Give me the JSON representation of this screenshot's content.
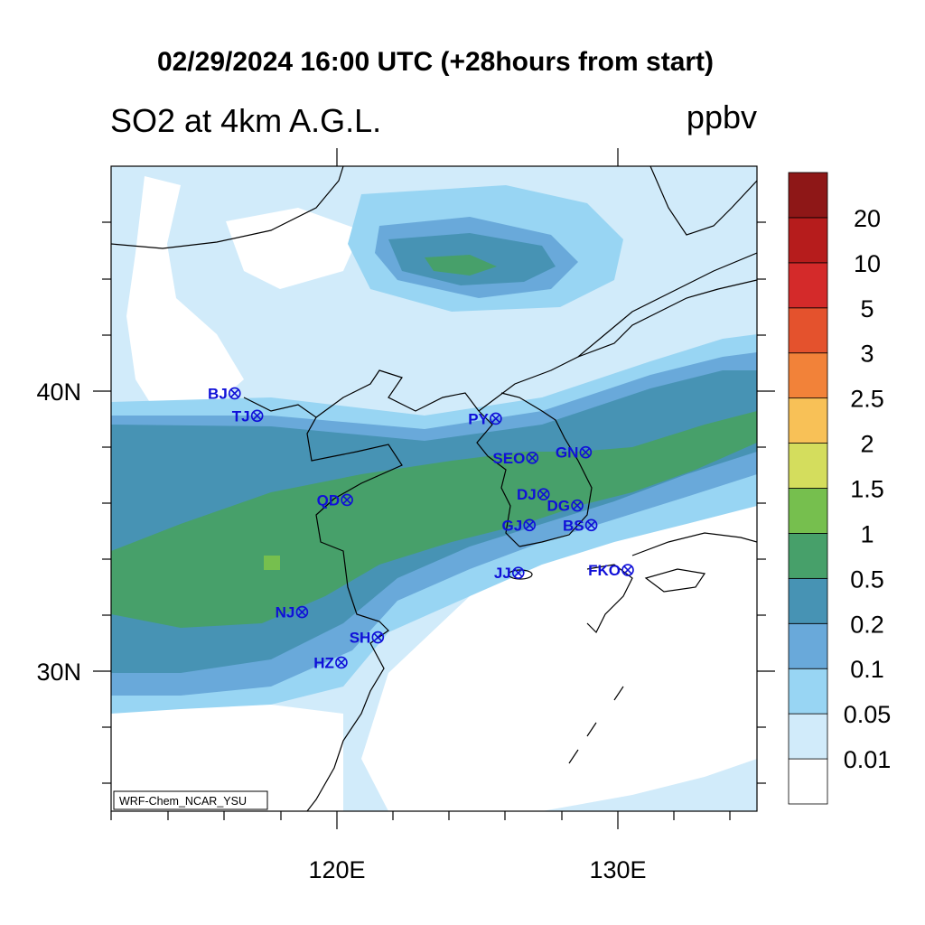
{
  "title": "02/29/2024 16:00 UTC (+28hours from start)",
  "variable": "SO2 at 4km A.G.L.",
  "units": "ppbv",
  "credit": "WRF-Chem_NCAR_YSU",
  "lon_range": [
    112,
    135
  ],
  "lat_range": [
    25,
    48
  ],
  "lon_tick_labels": [
    "120E",
    "130E"
  ],
  "lat_tick_labels": [
    "40N",
    "30N"
  ],
  "colorbar": {
    "levels": [
      "0.01",
      "0.05",
      "0.1",
      "0.2",
      "0.5",
      "1",
      "1.5",
      "2",
      "2.5",
      "3",
      "5",
      "10",
      "20"
    ],
    "colors": [
      "#ffffff",
      "#d1ebfa",
      "#98d5f3",
      "#69a9da",
      "#4793b4",
      "#47a06a",
      "#76bf4e",
      "#d4dd5d",
      "#f8c157",
      "#f28239",
      "#e4522d",
      "#d42a2a",
      "#b61c1c",
      "#8e1717"
    ]
  },
  "stations": [
    {
      "code": "BJ",
      "lon": 116.4,
      "lat": 39.9
    },
    {
      "code": "TJ",
      "lon": 117.2,
      "lat": 39.1
    },
    {
      "code": "PY",
      "lon": 125.7,
      "lat": 39.0
    },
    {
      "code": "SEO",
      "lon": 127.0,
      "lat": 37.6
    },
    {
      "code": "GN",
      "lon": 128.9,
      "lat": 37.8
    },
    {
      "code": "DJ",
      "lon": 127.4,
      "lat": 36.3
    },
    {
      "code": "DG",
      "lon": 128.6,
      "lat": 35.9
    },
    {
      "code": "QD",
      "lon": 120.4,
      "lat": 36.1
    },
    {
      "code": "GJ",
      "lon": 126.9,
      "lat": 35.2
    },
    {
      "code": "BS",
      "lon": 129.1,
      "lat": 35.2
    },
    {
      "code": "JJ",
      "lon": 126.5,
      "lat": 33.5
    },
    {
      "code": "FKO",
      "lon": 130.4,
      "lat": 33.6
    },
    {
      "code": "NJ",
      "lon": 118.8,
      "lat": 32.1
    },
    {
      "code": "SH",
      "lon": 121.5,
      "lat": 31.2
    },
    {
      "code": "HZ",
      "lon": 120.2,
      "lat": 30.3
    }
  ]
}
